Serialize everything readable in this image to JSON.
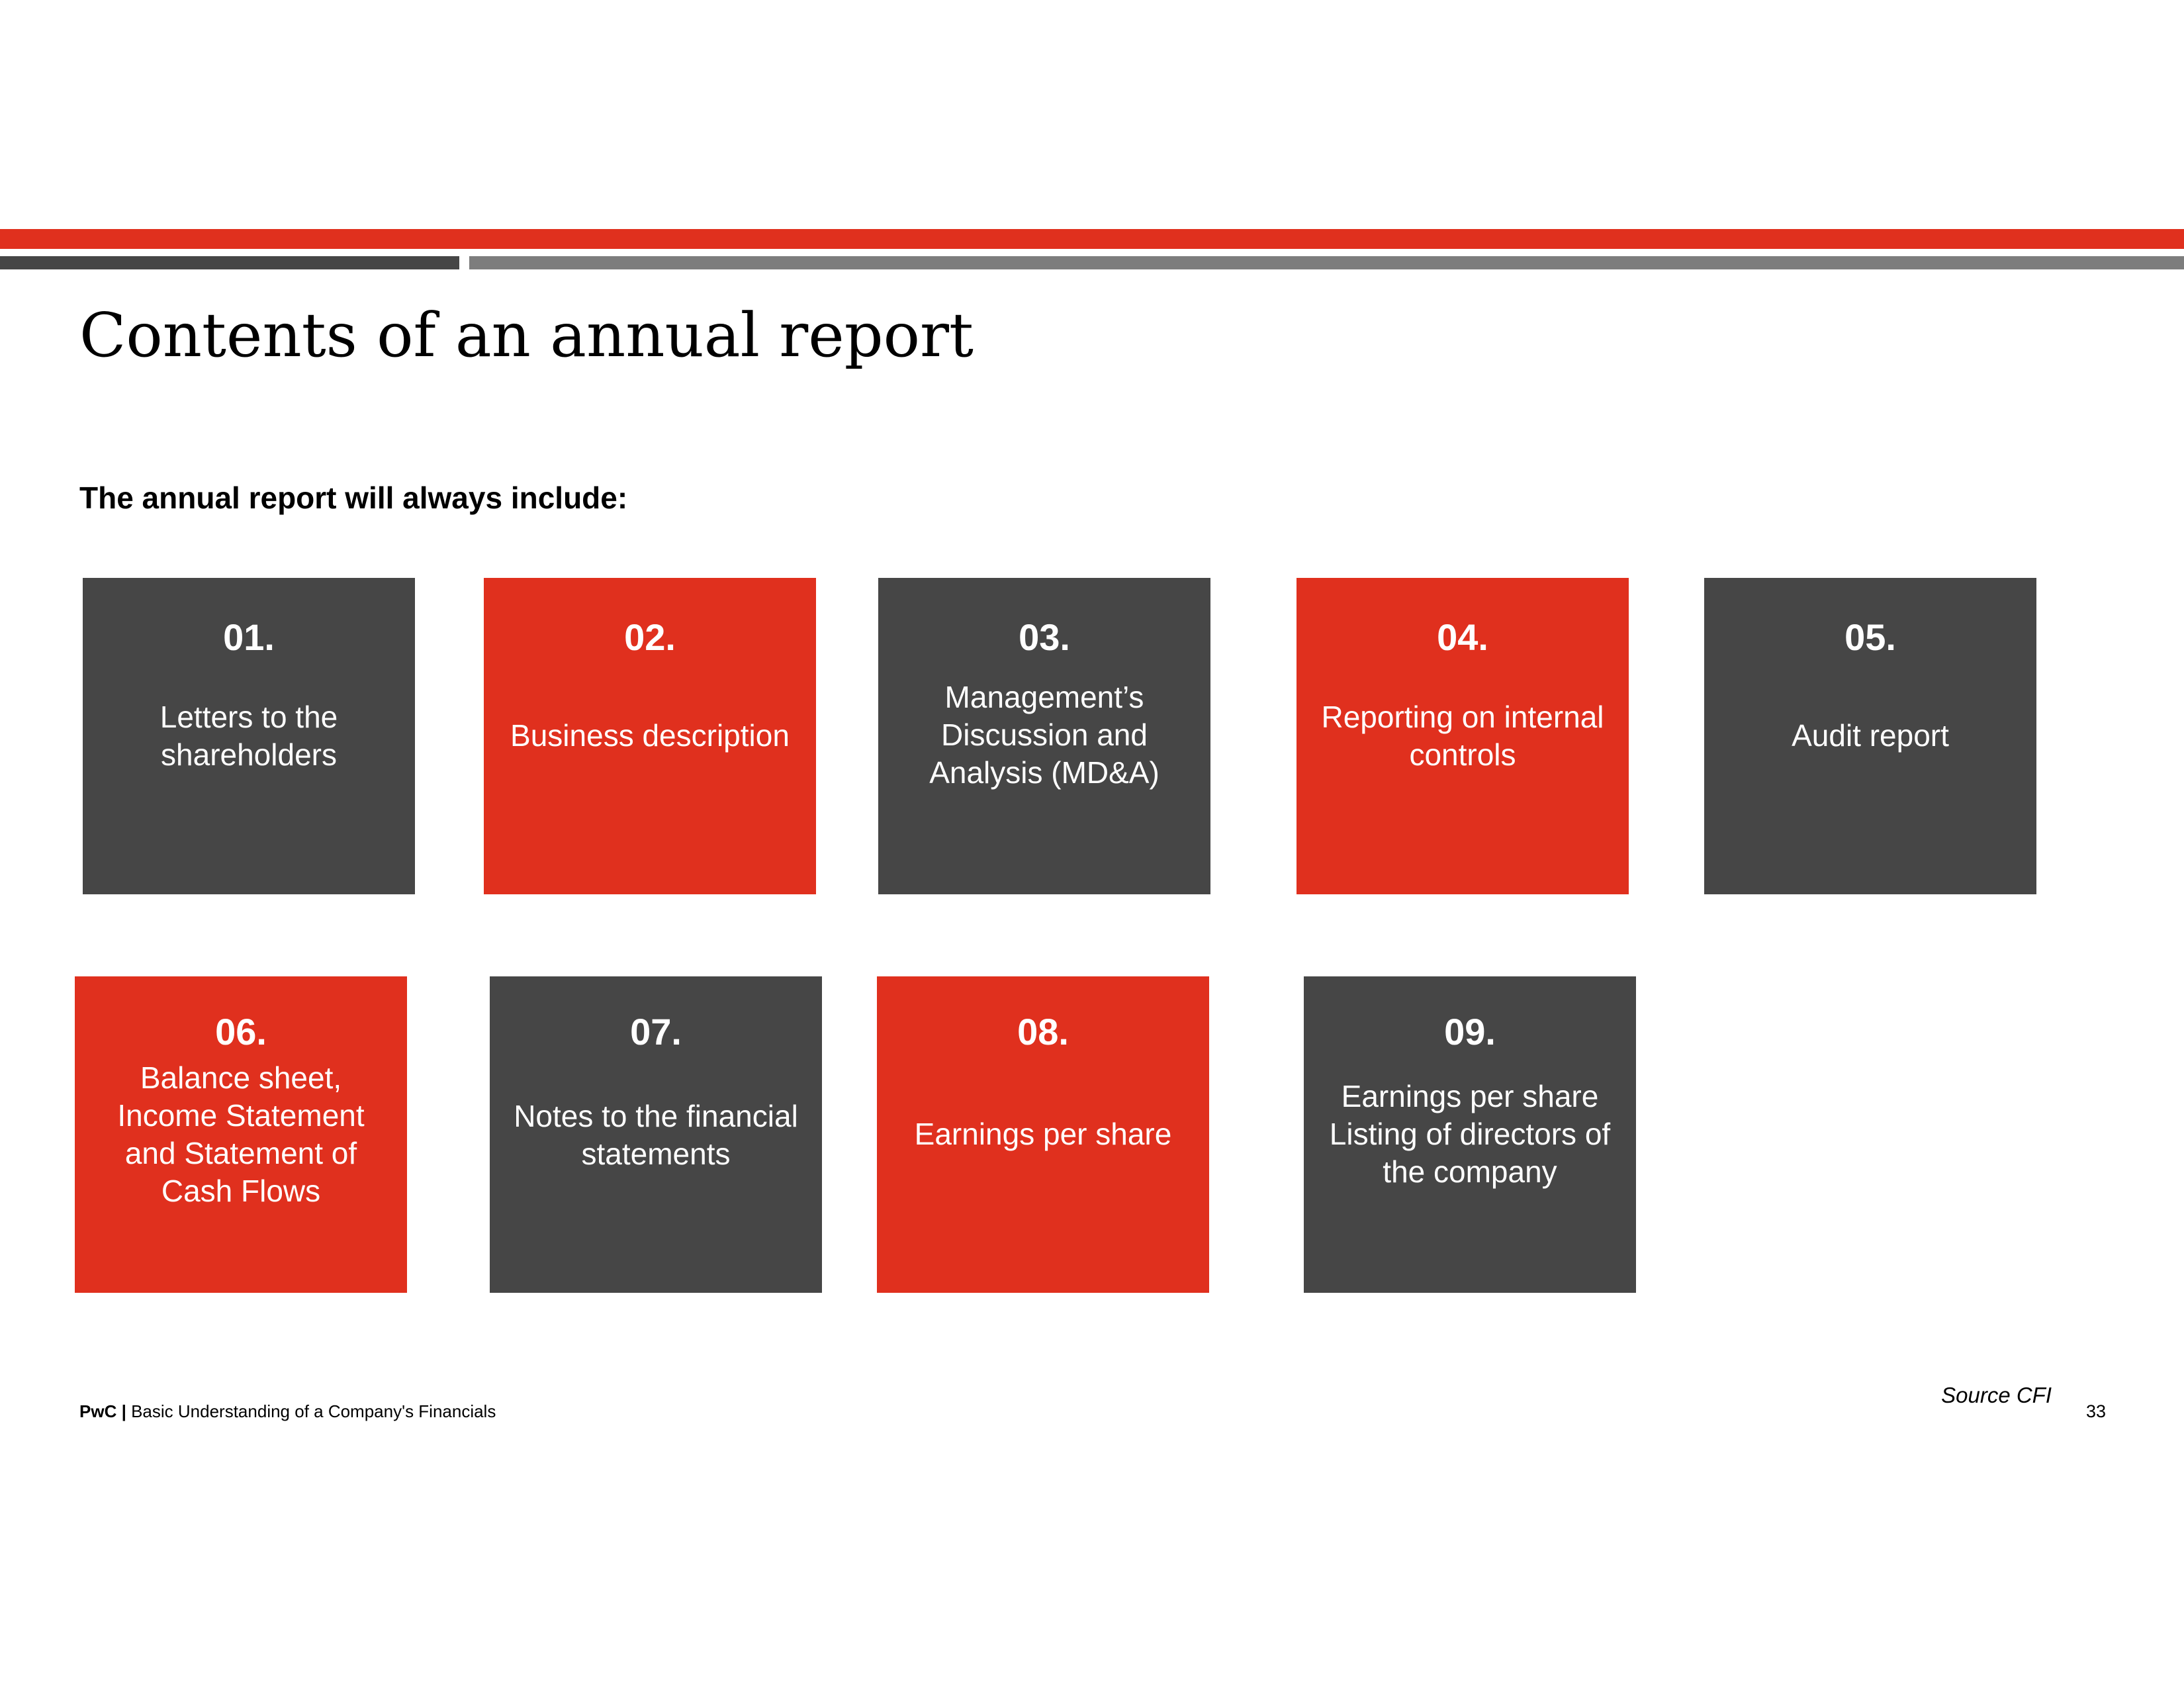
{
  "header": {
    "title": "Contents of an annual report"
  },
  "intro": {
    "text": "The annual report will always include:"
  },
  "tiles": [
    {
      "number": "01.",
      "text": "Letters to the\nshareholders",
      "color": "dark"
    },
    {
      "number": "02.",
      "text": "Business description",
      "color": "red"
    },
    {
      "number": "03.",
      "text": "Management’s\nDiscussion and\nAnalysis (MD&A)",
      "color": "dark"
    },
    {
      "number": "04.",
      "text": "Reporting on internal\ncontrols",
      "color": "red"
    },
    {
      "number": "05.",
      "text": "Audit report",
      "color": "dark"
    },
    {
      "number": "06.",
      "text": "Balance sheet,\nIncome Statement\nand Statement of\nCash Flows",
      "color": "red"
    },
    {
      "number": "07.",
      "text": "Notes to the financial\nstatements",
      "color": "dark"
    },
    {
      "number": "08.",
      "text": "Earnings per share",
      "color": "red"
    },
    {
      "number": "09.",
      "text": "Earnings per share\nListing of directors of\nthe company",
      "color": "dark"
    }
  ],
  "footer": {
    "brand": "PwC",
    "separator": "|",
    "doc_title": "Basic Understanding of a Company's Financials",
    "source": "Source CFI",
    "page_number": "33"
  },
  "colors": {
    "accent_red": "#e0301e",
    "tile_dark": "#464646",
    "bar_gray": "#7d7d7d"
  }
}
